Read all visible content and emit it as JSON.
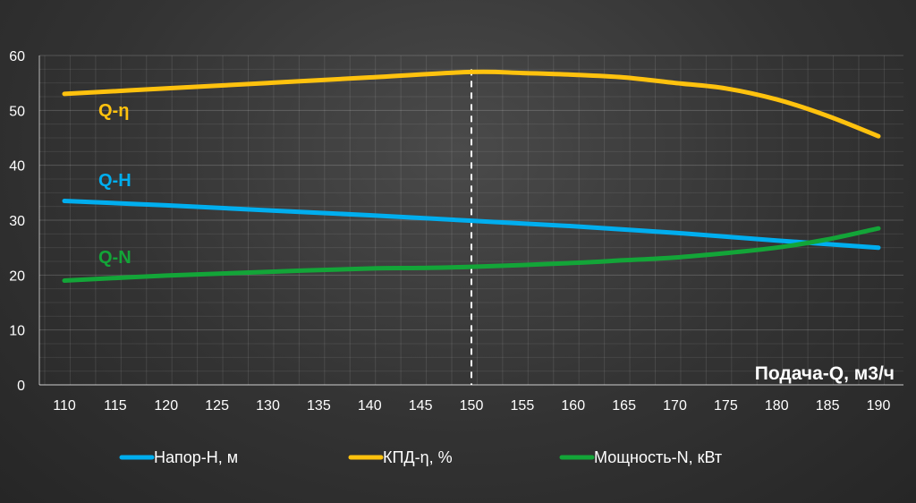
{
  "chart_data": {
    "type": "line",
    "xlabel": "Подача-Q, м3/ч",
    "ylabel": "",
    "title": "",
    "xlim": [
      110,
      190
    ],
    "ylim": [
      0,
      60
    ],
    "x_ticks": [
      "110",
      "115",
      "120",
      "125",
      "130",
      "135",
      "140",
      "145",
      "150",
      "155",
      "160",
      "165",
      "170",
      "175",
      "180",
      "185",
      "190"
    ],
    "y_ticks": [
      "0",
      "10",
      "20",
      "30",
      "40",
      "50",
      "60"
    ],
    "grid": true,
    "legend": "bottom",
    "reference_line_x": 150,
    "series": [
      {
        "name": "Напор-H, м",
        "label": "Q-H",
        "color": "#00aeef",
        "x": [
          110,
          120,
          130,
          140,
          150,
          160,
          170,
          180,
          190
        ],
        "values": [
          33.5,
          32.7,
          31.8,
          30.9,
          29.9,
          28.9,
          27.7,
          26.3,
          25.0
        ]
      },
      {
        "name": "КПД-η, %",
        "label": "Q-η",
        "color": "#ffc20e",
        "x": [
          110,
          120,
          130,
          140,
          150,
          155,
          160,
          165,
          170,
          175,
          180,
          185,
          190
        ],
        "values": [
          53.0,
          54.0,
          55.0,
          56.0,
          57.0,
          56.8,
          56.5,
          56.0,
          55.0,
          54.0,
          52.0,
          49.0,
          45.3
        ]
      },
      {
        "name": "Мощность-N, кВт",
        "label": "Q-N",
        "color": "#13a538",
        "x": [
          110,
          120,
          130,
          140,
          145,
          150,
          160,
          165,
          170,
          175,
          180,
          185,
          190
        ],
        "values": [
          19.0,
          19.9,
          20.6,
          21.2,
          21.3,
          21.5,
          22.2,
          22.7,
          23.2,
          24.0,
          25.0,
          26.5,
          28.5
        ]
      }
    ]
  }
}
